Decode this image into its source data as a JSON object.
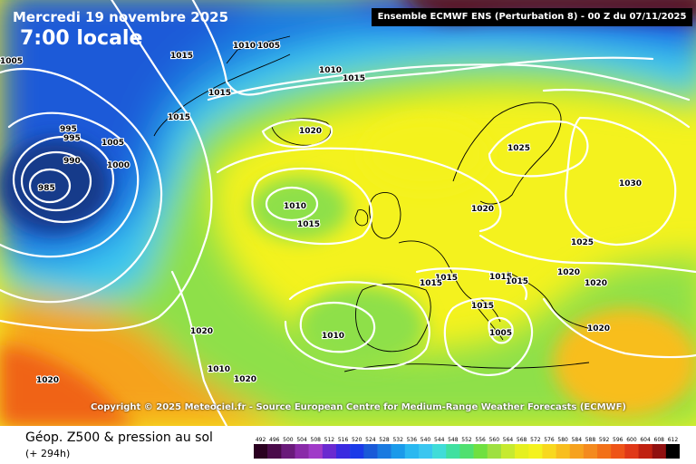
{
  "header": {
    "date": "Mercredi 19 novembre 2025",
    "time": "7:00 locale",
    "run_info": "Ensemble ECMWF ENS  (Perturbation 8)  -  00 Z du 07/11/2025"
  },
  "map": {
    "pressure_labels": [
      {
        "value": "1005"
      },
      {
        "value": "1015"
      },
      {
        "value": "1010"
      },
      {
        "value": "1005"
      },
      {
        "value": "1015"
      },
      {
        "value": "1015"
      },
      {
        "value": "1010"
      },
      {
        "value": "1015"
      },
      {
        "value": "995"
      },
      {
        "value": "995"
      },
      {
        "value": "1005"
      },
      {
        "value": "1020"
      },
      {
        "value": "990"
      },
      {
        "value": "1000"
      },
      {
        "value": "985"
      },
      {
        "value": "1025"
      },
      {
        "value": "1030"
      },
      {
        "value": "1010"
      },
      {
        "value": "1015"
      },
      {
        "value": "1020"
      },
      {
        "value": "1025"
      },
      {
        "value": "1015"
      },
      {
        "value": "1015"
      },
      {
        "value": "1015"
      },
      {
        "value": "1015"
      },
      {
        "value": "1020"
      },
      {
        "value": "1015"
      },
      {
        "value": "1010"
      },
      {
        "value": "1005"
      },
      {
        "value": "1020"
      },
      {
        "value": "1020"
      },
      {
        "value": "1010"
      },
      {
        "value": "1020"
      },
      {
        "value": "1020"
      },
      {
        "value": "1020"
      }
    ],
    "colors": {
      "deep_low": "#123a8a",
      "low": "#1a5ad8",
      "cyan": "#3ac6f0",
      "green": "#8ee04a",
      "yellow": "#f4f21e",
      "orange": "#f6a21e",
      "red_orange": "#f06418",
      "dark_red": "#5a0a18"
    }
  },
  "copyright": "Copyright © 2025 Meteociel.fr - Source European Centre for Medium-Range Weather Forecasts (ECMWF)",
  "footer": {
    "title": "Géop. Z500 & pression au sol",
    "subtitle": "(+ 294h)"
  },
  "legend": {
    "labels": [
      "492",
      "496",
      "500",
      "504",
      "508",
      "512",
      "516",
      "520",
      "524",
      "528",
      "532",
      "536",
      "540",
      "544",
      "548",
      "552",
      "556",
      "560",
      "564",
      "568",
      "572",
      "576",
      "580",
      "584",
      "588",
      "592",
      "596",
      "600",
      "604",
      "608",
      "612"
    ],
    "colors": [
      "#2a0020",
      "#4a0a4a",
      "#6a1a7a",
      "#8a2aa8",
      "#a03ac8",
      "#6a2ad0",
      "#3a2ae0",
      "#1a3ae8",
      "#1a5ad8",
      "#1a7ae0",
      "#1a9aea",
      "#2ab8f0",
      "#3ac6f0",
      "#40dcd8",
      "#40e0a0",
      "#50e070",
      "#70e040",
      "#9ee040",
      "#c6ea30",
      "#e6f020",
      "#f4f21e",
      "#f8d81e",
      "#f8be1e",
      "#f6a21e",
      "#f48a1e",
      "#f27018",
      "#ee5418",
      "#e03818",
      "#c02010",
      "#901010",
      "#000000"
    ]
  }
}
